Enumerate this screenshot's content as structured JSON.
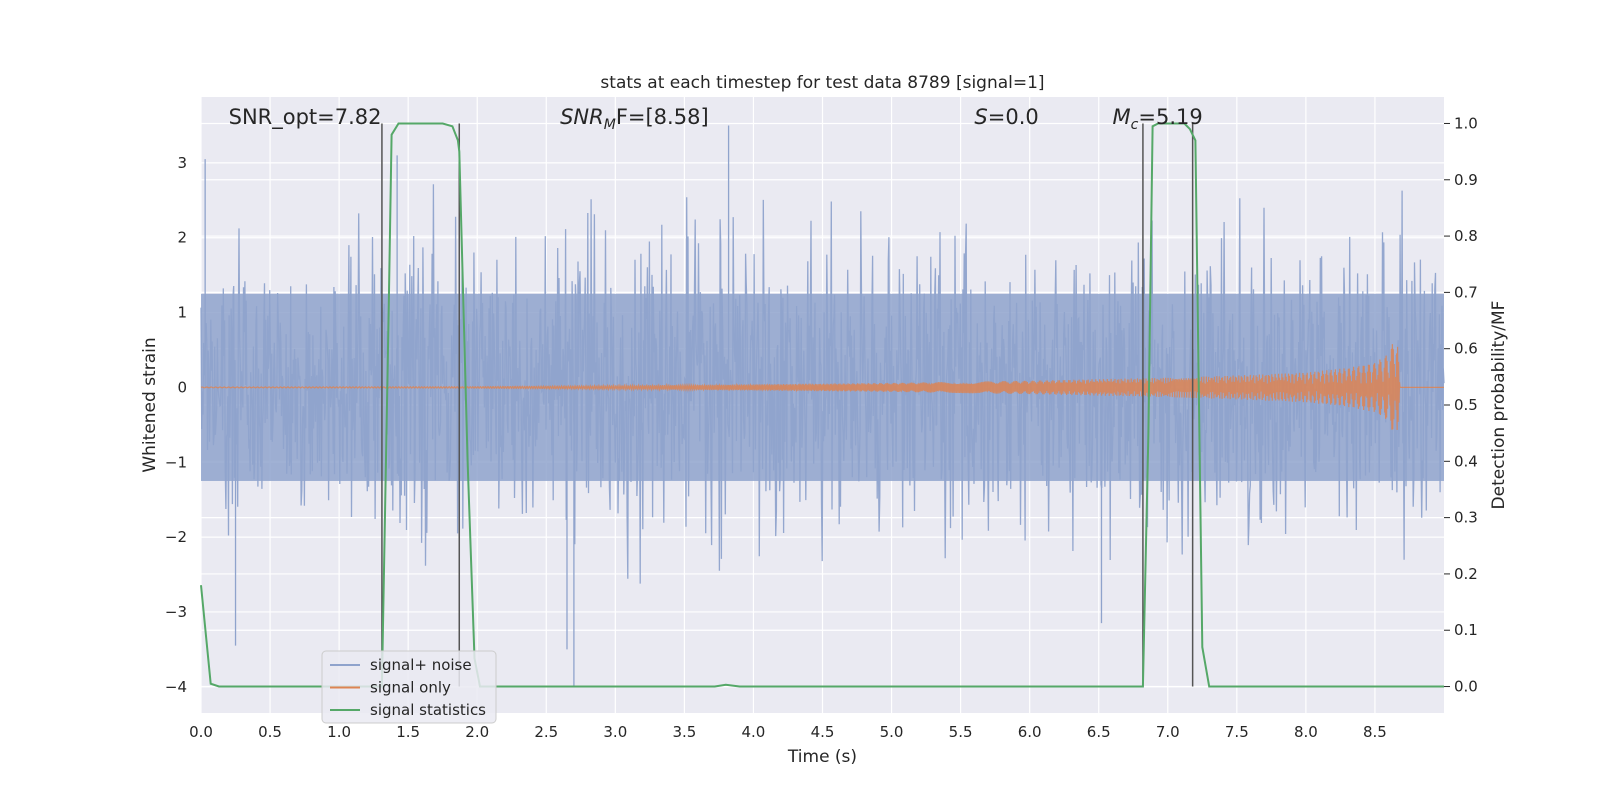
{
  "chart_data": {
    "type": "line",
    "title": "stats at each timestep for test data 8789 [signal=1]",
    "xlabel": "Time (s)",
    "ylabel_left": "Whitened strain",
    "ylabel_right": "Detection probability/MF",
    "xlim": [
      0,
      9
    ],
    "ylim_left": [
      -4.35,
      3.88
    ],
    "ylim_right": [
      -0.047,
      1.047
    ],
    "xticks": [
      "0.0",
      "0.5",
      "1.0",
      "1.5",
      "2.0",
      "2.5",
      "3.0",
      "3.5",
      "4.0",
      "4.5",
      "5.0",
      "5.5",
      "6.0",
      "6.5",
      "7.0",
      "7.5",
      "8.0",
      "8.5"
    ],
    "yticks_left": [
      "3",
      "2",
      "1",
      "0",
      "−1",
      "−2",
      "−3",
      "−4"
    ],
    "yticks_right": [
      "1.0",
      "0.9",
      "0.8",
      "0.7",
      "0.6",
      "0.5",
      "0.4",
      "0.3",
      "0.2",
      "0.1",
      "0.0"
    ],
    "grid": true,
    "legend_position": "lower-left",
    "annotations": {
      "snr_opt": "SNR_opt=7.82",
      "snr_mf_main": "SNR",
      "snr_mf_sub": "M",
      "snr_mf_tail": "F=[8.58]",
      "s_italic": "S",
      "s_tail": "=0.0",
      "mc_main": "M",
      "mc_sub": "c",
      "mc_tail": "=5.19"
    },
    "series": [
      {
        "name": "signal+ noise",
        "axis": "left",
        "color": "#8fa3cc",
        "description_of_values": "whitened noise, roughly within [-2.7, 2.8] with spikes to about 3.5 and -4.0",
        "x_range": [
          0,
          9
        ]
      },
      {
        "name": "signal only",
        "axis": "left",
        "color": "#dd8452",
        "x": [
          0,
          2,
          3,
          4,
          5,
          6,
          7,
          7.5,
          8,
          8.3,
          8.5,
          8.6,
          8.66,
          8.68,
          9
        ],
        "amplitude": [
          0.005,
          0.01,
          0.025,
          0.04,
          0.06,
          0.09,
          0.13,
          0.16,
          0.2,
          0.26,
          0.33,
          0.45,
          0.76,
          0,
          0
        ]
      },
      {
        "name": "signal statistics",
        "axis": "right",
        "color": "#55a868",
        "x": [
          0,
          0.07,
          0.13,
          1.31,
          1.36,
          1.38,
          1.43,
          1.5,
          1.75,
          1.82,
          1.86,
          1.87,
          1.93,
          1.98,
          2.02,
          3.72,
          3.8,
          3.9,
          6.82,
          6.86,
          6.89,
          6.93,
          7.12,
          7.16,
          7.2,
          7.25,
          7.3,
          9.0
        ],
        "y": [
          0.18,
          0.005,
          0.0,
          0.0,
          0.68,
          0.98,
          1.0,
          1.0,
          1.0,
          0.995,
          0.97,
          0.95,
          0.4,
          0.05,
          0.0,
          0.0,
          0.003,
          0.0,
          0.0,
          0.45,
          0.995,
          1.0,
          1.0,
          0.99,
          0.97,
          0.07,
          0.0,
          0.0
        ]
      }
    ],
    "vertical_lines_x": [
      1.31,
      1.87,
      6.82,
      7.18
    ]
  }
}
